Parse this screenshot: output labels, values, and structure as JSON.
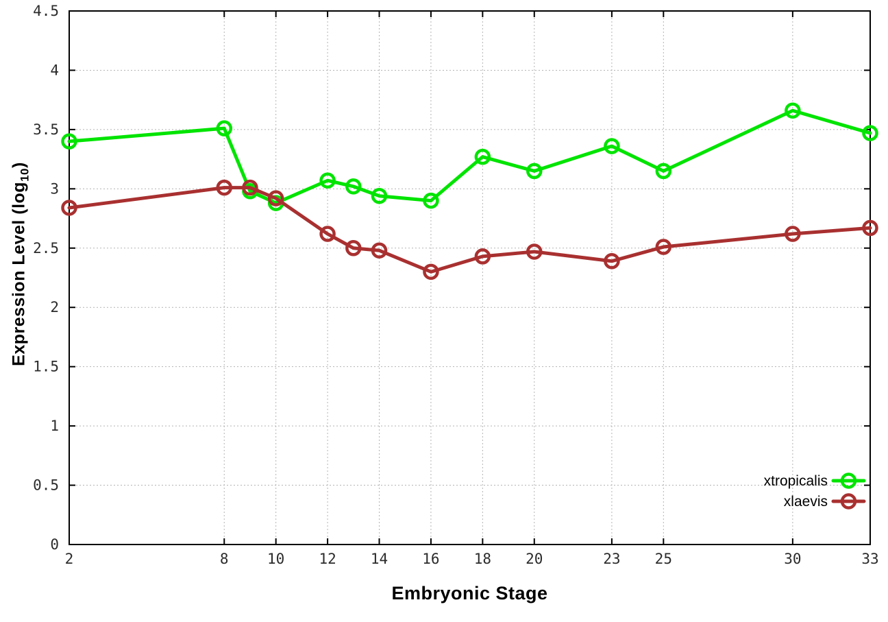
{
  "chart_data": {
    "type": "line",
    "title": "",
    "xlabel": "Embryonic Stage",
    "ylabel": "Expression Level (log10)",
    "ylabel_parts": {
      "main": "Expression Level (log",
      "sub": "10",
      "end": ")"
    },
    "x": [
      2,
      8,
      9,
      10,
      12,
      13,
      14,
      16,
      18,
      20,
      23,
      25,
      30,
      33
    ],
    "series": [
      {
        "name": "xtropicalis",
        "color": "#00e400",
        "marker": "open-circle",
        "values": [
          3.4,
          3.51,
          2.98,
          2.88,
          3.07,
          3.02,
          2.94,
          2.9,
          3.27,
          3.15,
          3.36,
          3.15,
          3.66,
          3.47
        ]
      },
      {
        "name": "xlaevis",
        "color": "#a93030",
        "marker": "open-circle",
        "values": [
          2.84,
          3.01,
          3.01,
          2.92,
          2.62,
          2.5,
          2.48,
          2.3,
          2.43,
          2.47,
          2.39,
          2.51,
          2.62,
          2.67
        ]
      }
    ],
    "xticks": [
      2,
      8,
      10,
      12,
      14,
      16,
      18,
      20,
      23,
      25,
      30,
      33
    ],
    "xtick_labels": [
      "2",
      "8",
      "10",
      "12",
      "14",
      "16",
      "18",
      "20",
      "23",
      "25",
      "30",
      "33"
    ],
    "yticks": [
      0,
      0.5,
      1,
      1.5,
      2,
      2.5,
      3,
      3.5,
      4,
      4.5
    ],
    "ytick_labels": [
      "0",
      "0.5",
      "1",
      "1.5",
      "2",
      "2.5",
      "3",
      "3.5",
      "4",
      "4.5"
    ],
    "xlim": [
      2,
      33
    ],
    "ylim": [
      0,
      4.5
    ],
    "grid": true,
    "legend_position": "inside bottom-right"
  },
  "colors": {
    "background": "#ffffff",
    "axis": "#000000",
    "grid": "#b3b3b3",
    "tick_text": "#2b2b2b"
  }
}
